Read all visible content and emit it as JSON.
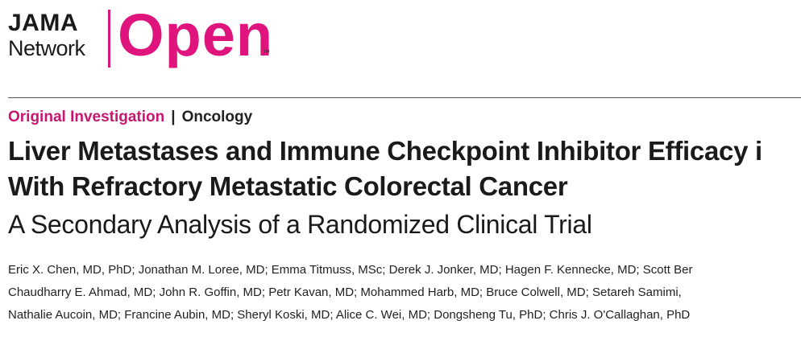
{
  "logo": {
    "line1": "JAMA",
    "line2": "Network",
    "open": "Open",
    "tm": "™",
    "brand_color": "#e0147d"
  },
  "category": {
    "main": "Original Investigation",
    "separator": "|",
    "sub": "Oncology"
  },
  "title": {
    "line1": "Liver Metastases and Immune Checkpoint Inhibitor Efficacy i",
    "line2": "With Refractory Metastatic Colorectal Cancer"
  },
  "subtitle": "A Secondary Analysis of a Randomized Clinical Trial",
  "authors": {
    "lines": [
      "Eric X. Chen, MD, PhD; Jonathan M. Loree, MD; Emma Titmuss, MSc; Derek J. Jonker, MD; Hagen F. Kennecke, MD; Scott Ber",
      "Chaudharry E. Ahmad, MD; John R. Goffin, MD; Petr Kavan, MD; Mohammed Harb, MD; Bruce Colwell, MD; Setareh Samimi,",
      "Nathalie Aucoin, MD; Francine Aubin, MD; Sheryl Koski, MD; Alice C. Wei, MD; Dongsheng Tu, PhD; Chris J. O'Callaghan, PhD"
    ]
  }
}
